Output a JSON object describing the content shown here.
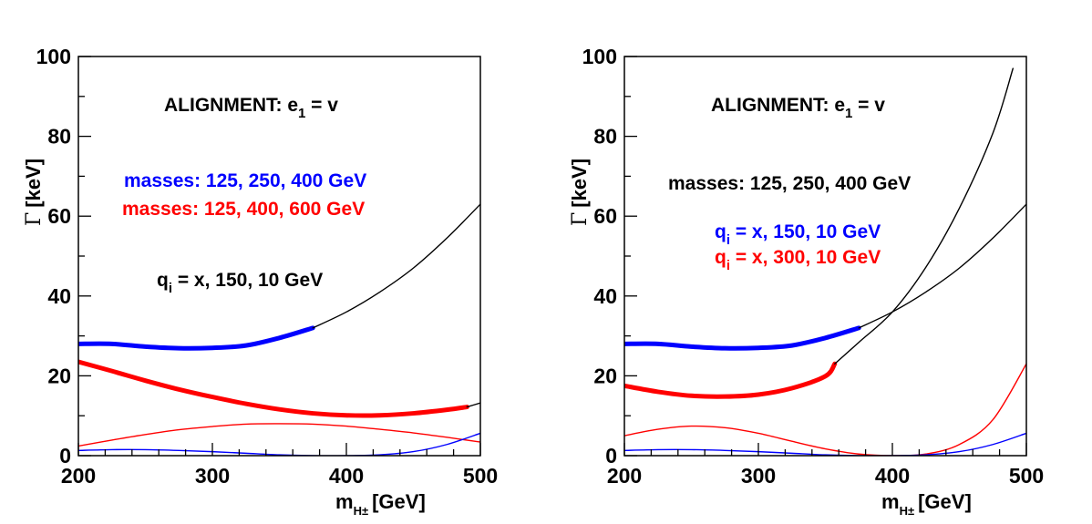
{
  "chart_data": [
    {
      "type": "line",
      "panel": "left",
      "xlabel_main": "m",
      "xlabel_sub": "H±",
      "xlabel_unit": "[GeV]",
      "ylabel_symbol": "Γ",
      "ylabel_unit": "[keV]",
      "xlim": [
        200,
        500
      ],
      "ylim": [
        0,
        100
      ],
      "xticks": [
        200,
        300,
        400,
        500
      ],
      "yticks": [
        0,
        20,
        40,
        60,
        80,
        100
      ],
      "annotations": {
        "alignment_main": "ALIGNMENT: e",
        "alignment_sub": "1",
        "alignment_rest": " = v",
        "line1": "masses: 125, 250, 400 GeV",
        "line2": "masses: 125, 400, 600 GeV",
        "line3_main": "q",
        "line3_sub": "i",
        "line3_rest": " = x, 150, 10 GeV"
      },
      "series": [
        {
          "name": "total width, masses 125, 250, 400 GeV",
          "color": "#0000ff",
          "width": "thick",
          "x": [
            200,
            225,
            250,
            275,
            300,
            325,
            350,
            375
          ],
          "y": [
            28.0,
            28.0,
            27.3,
            26.9,
            27.0,
            27.6,
            29.5,
            32.0
          ]
        },
        {
          "name": "continuation of blue curve",
          "color": "#000000",
          "width": "thin",
          "x": [
            375,
            400,
            425,
            450,
            475,
            500
          ],
          "y": [
            32.0,
            36.0,
            41.0,
            47.0,
            54.5,
            63.0
          ]
        },
        {
          "name": "total width, masses 125, 400, 600 GeV",
          "color": "#ff0000",
          "width": "thick",
          "x": [
            200,
            225,
            250,
            275,
            300,
            325,
            350,
            375,
            400,
            425,
            450,
            475,
            490
          ],
          "y": [
            23.5,
            21.2,
            18.8,
            16.6,
            14.7,
            13.0,
            11.6,
            10.6,
            10.1,
            10.1,
            10.6,
            11.5,
            12.2
          ]
        },
        {
          "name": "continuation of red curve",
          "color": "#000000",
          "width": "thin",
          "x": [
            490,
            500
          ],
          "y": [
            12.2,
            13.2
          ]
        },
        {
          "name": "partial width (red)",
          "color": "#ff0000",
          "width": "thin",
          "x": [
            200,
            225,
            250,
            275,
            300,
            325,
            350,
            375,
            400,
            425,
            450,
            475,
            500
          ],
          "y": [
            2.4,
            3.9,
            5.3,
            6.5,
            7.3,
            7.9,
            8.0,
            7.9,
            7.4,
            6.6,
            5.7,
            4.6,
            3.4
          ]
        },
        {
          "name": "partial width (blue)",
          "color": "#0000ff",
          "width": "thin",
          "x": [
            200,
            225,
            250,
            275,
            300,
            325,
            350,
            375,
            400,
            425,
            450,
            475,
            500
          ],
          "y": [
            1.3,
            1.5,
            1.5,
            1.3,
            1.0,
            0.6,
            0.2,
            0.0,
            0.0,
            0.2,
            1.0,
            2.8,
            5.6
          ]
        }
      ]
    },
    {
      "type": "line",
      "panel": "right",
      "xlabel_main": "m",
      "xlabel_sub": "H±",
      "xlabel_unit": "[GeV]",
      "ylabel_symbol": "Γ",
      "ylabel_unit": "[keV]",
      "xlim": [
        200,
        500
      ],
      "ylim": [
        0,
        100
      ],
      "xticks": [
        200,
        300,
        400,
        500
      ],
      "yticks": [
        0,
        20,
        40,
        60,
        80,
        100
      ],
      "annotations": {
        "alignment_main": "ALIGNMENT: e",
        "alignment_sub": "1",
        "alignment_rest": " = v",
        "line1": "masses: 125, 250, 400 GeV",
        "line2_main": "q",
        "line2_sub": "i",
        "line2_rest": " = x, 150, 10 GeV",
        "line3_main": "q",
        "line3_sub": "i",
        "line3_rest": " = x, 300, 10 GeV"
      },
      "series": [
        {
          "name": "total width, q_i = x, 150, 10 GeV",
          "color": "#0000ff",
          "width": "thick",
          "x": [
            200,
            225,
            250,
            275,
            300,
            325,
            350,
            375
          ],
          "y": [
            28.0,
            28.0,
            27.3,
            26.9,
            27.0,
            27.6,
            29.5,
            32.0
          ]
        },
        {
          "name": "continuation of blue curve",
          "color": "#000000",
          "width": "thin",
          "x": [
            375,
            400,
            425,
            450,
            475,
            500
          ],
          "y": [
            32.0,
            36.0,
            41.0,
            47.0,
            54.5,
            63.0
          ]
        },
        {
          "name": "total width, q_i = x, 300, 10 GeV",
          "color": "#ff0000",
          "width": "thick",
          "x": [
            200,
            225,
            250,
            275,
            300,
            325,
            350,
            357
          ],
          "y": [
            17.5,
            16.0,
            15.0,
            14.8,
            15.3,
            16.9,
            19.9,
            23.0
          ]
        },
        {
          "name": "continuation of red curve",
          "color": "#000000",
          "width": "thin",
          "x": [
            357,
            375,
            400,
            425,
            450,
            475,
            490
          ],
          "y": [
            23.0,
            28.4,
            36.0,
            47.2,
            62.0,
            80.8,
            97.0
          ]
        },
        {
          "name": "partial width (red)",
          "color": "#ff0000",
          "width": "thin",
          "x": [
            200,
            225,
            250,
            275,
            300,
            325,
            350,
            375,
            400,
            425,
            450,
            475,
            500
          ],
          "y": [
            5.0,
            6.6,
            7.4,
            7.0,
            5.6,
            3.6,
            1.7,
            0.4,
            0.0,
            0.4,
            2.8,
            9.0,
            23.0
          ]
        },
        {
          "name": "partial width (blue)",
          "color": "#0000ff",
          "width": "thin",
          "x": [
            200,
            225,
            250,
            275,
            300,
            325,
            350,
            375,
            400,
            425,
            450,
            475,
            500
          ],
          "y": [
            1.3,
            1.5,
            1.5,
            1.3,
            1.0,
            0.6,
            0.2,
            0.0,
            0.0,
            0.2,
            1.0,
            2.8,
            5.6
          ]
        }
      ]
    }
  ]
}
